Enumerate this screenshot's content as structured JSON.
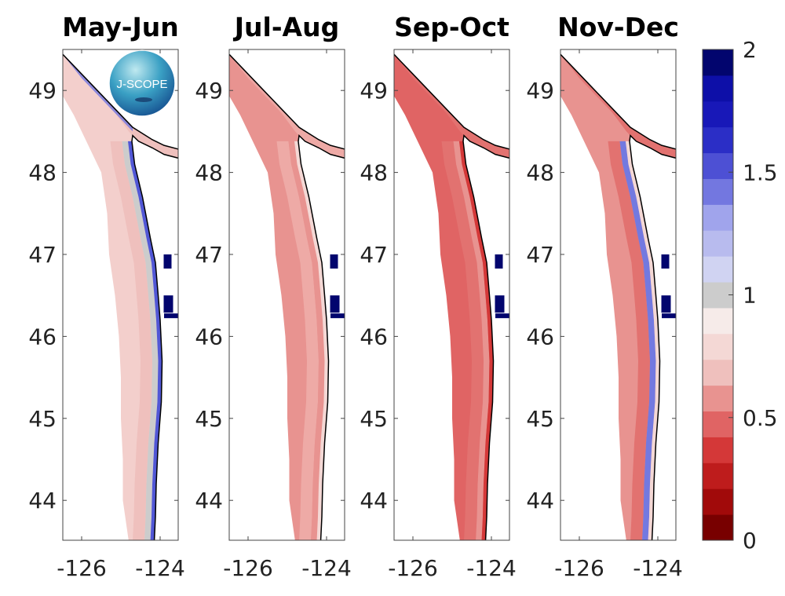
{
  "figure": {
    "panels": [
      {
        "title": "May-Jun",
        "base": "#f3cfcc",
        "mid": "#efc0bd",
        "coastal": "#5157d6",
        "inner": "#cccccc",
        "logo": true
      },
      {
        "title": "Jul-Aug",
        "base": "#e89390",
        "mid": "#eeaaa6",
        "coastal": "#f4d8d5",
        "inner": "#e89390",
        "logo": false
      },
      {
        "title": "Sep-Oct",
        "base": "#e06464",
        "mid": "#e27270",
        "coastal": "#d43838",
        "inner": "#e89390",
        "logo": false
      },
      {
        "title": "Nov-Dec",
        "base": "#e89390",
        "mid": "#e27270",
        "coastal": "#f4d8d5",
        "inner": "#7379e0",
        "logo": false
      }
    ],
    "lat_ticks": [
      "49",
      "48",
      "47",
      "46",
      "45",
      "44"
    ],
    "lon_ticks": [
      "-126",
      "-124"
    ],
    "logo_text": "J-SCOPE",
    "colorbar": {
      "range": [
        0,
        2
      ],
      "ticks": [
        "0",
        "0.5",
        "1",
        "1.5",
        "2"
      ],
      "colors": [
        "#780000",
        "#a10a0a",
        "#be1c1c",
        "#d43838",
        "#e06464",
        "#e89390",
        "#efc0bd",
        "#f4d8d5",
        "#f6ebe9",
        "#cccccc",
        "#d0d3f2",
        "#b8bbee",
        "#a0a4ec",
        "#7377e0",
        "#4d50d4",
        "#2b2ec6",
        "#1818b8",
        "#0d0fa8",
        "#02056e"
      ]
    }
  }
}
